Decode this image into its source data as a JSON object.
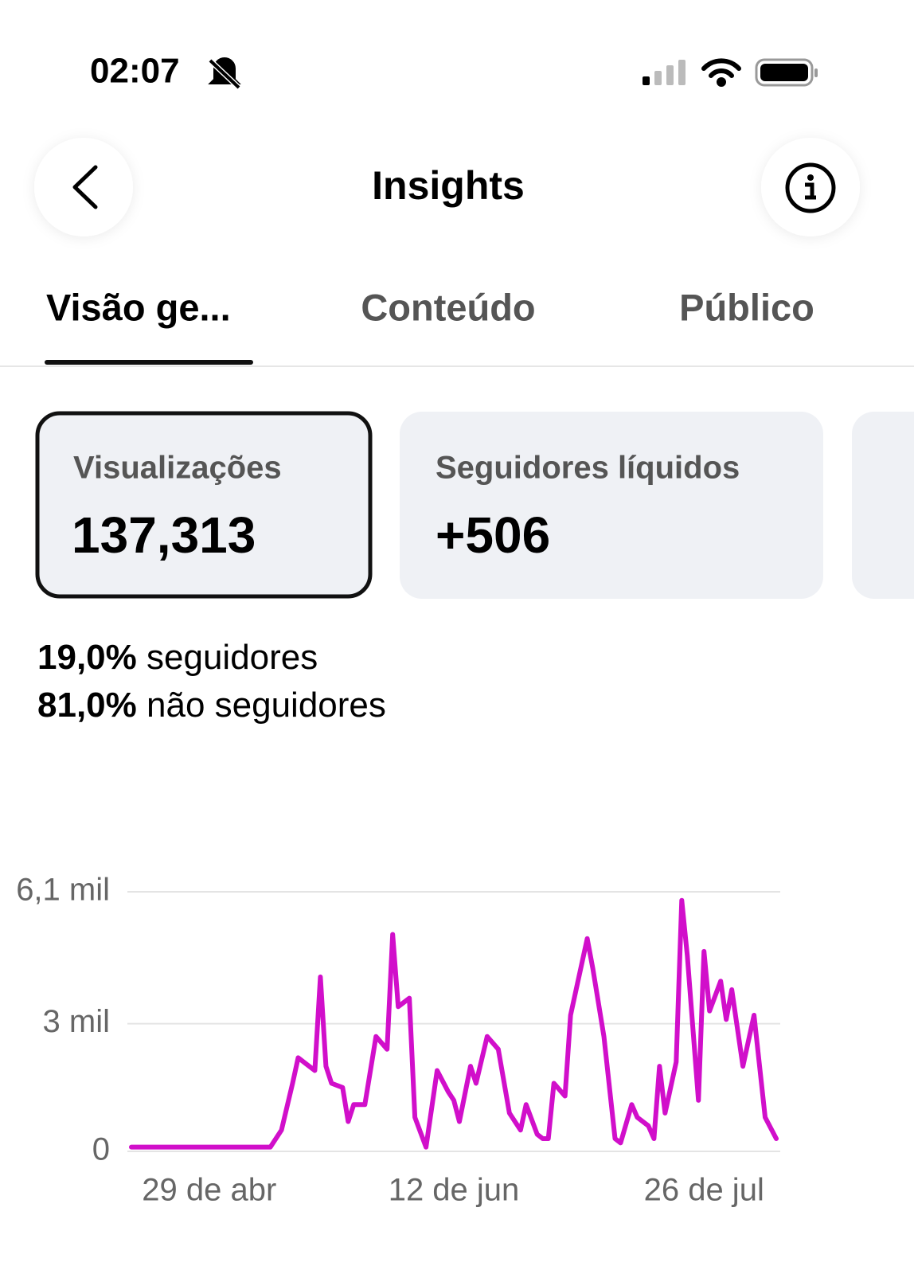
{
  "status_bar": {
    "time": "02:07"
  },
  "header": {
    "title": "Insights"
  },
  "tabs": [
    "Visão ge...",
    "Conteúdo",
    "Público"
  ],
  "cards": [
    {
      "label": "Visualizações",
      "value": "137,313"
    },
    {
      "label": "Seguidores líquidos",
      "value": "+506"
    }
  ],
  "audience": [
    {
      "percent": "19,0%",
      "label": "seguidores"
    },
    {
      "percent": "81,0%",
      "label": "não seguidores"
    }
  ],
  "chart_data": {
    "type": "line",
    "color": "#d10fca",
    "grid": true,
    "x": [
      0,
      25,
      27,
      29,
      30,
      33,
      34,
      35,
      36,
      38,
      39,
      40,
      42,
      44,
      46,
      47,
      48,
      50,
      51,
      53,
      55,
      57,
      58,
      59,
      61,
      62,
      64,
      66,
      68,
      70,
      71,
      73,
      74,
      75,
      76,
      78,
      79,
      82,
      83,
      85,
      87,
      88,
      90,
      91,
      93,
      94,
      95,
      96,
      98,
      99,
      100,
      102,
      103,
      104,
      106,
      107,
      108,
      110,
      112,
      114,
      116
    ],
    "values": [
      0.1,
      0.1,
      0.5,
      1.6,
      2.2,
      1.9,
      4.1,
      2.0,
      1.6,
      1.5,
      0.7,
      1.1,
      1.1,
      2.7,
      2.4,
      5.1,
      3.4,
      3.6,
      0.8,
      0.1,
      1.9,
      1.4,
      1.2,
      0.7,
      2.0,
      1.6,
      2.7,
      2.4,
      0.9,
      0.5,
      1.1,
      0.4,
      0.3,
      0.3,
      1.6,
      1.3,
      3.2,
      5.0,
      4.3,
      2.7,
      0.3,
      0.2,
      1.1,
      0.8,
      0.6,
      0.3,
      2.0,
      0.9,
      2.1,
      5.9,
      4.6,
      1.2,
      4.7,
      3.3,
      4.0,
      3.1,
      3.8,
      2.0,
      3.2,
      0.8,
      0.3
    ],
    "xlim": [
      0,
      116
    ],
    "xticks": [
      {
        "value": 14,
        "label": "29 de abr"
      },
      {
        "value": 58,
        "label": "12 de jun"
      },
      {
        "value": 103,
        "label": "26 de jul"
      }
    ],
    "ylim": [
      0,
      6.1
    ],
    "yticks": [
      0,
      {
        "value": 3,
        "label": "3 mil"
      },
      {
        "value": 6.1,
        "label": "6,1 mil"
      }
    ]
  }
}
